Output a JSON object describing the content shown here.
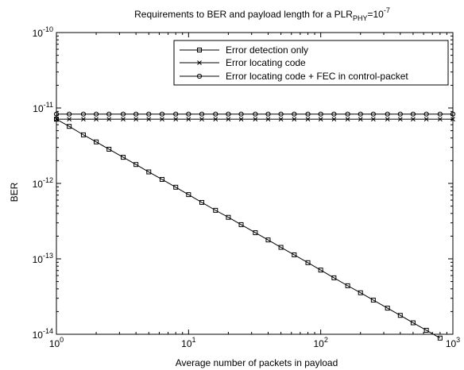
{
  "chart_data": {
    "type": "line",
    "title": {
      "main": "Requirements to BER and payload length for a PLR",
      "subscript": "PHY",
      "suffix": "=10",
      "superscript": "-7"
    },
    "xlabel": "Average number of packets in payload",
    "ylabel": "BER",
    "x_scale": "log",
    "y_scale": "log",
    "xlim": [
      1,
      1000
    ],
    "ylim": [
      1e-14,
      1e-10
    ],
    "x_ticks": [
      {
        "value": 1,
        "base": "10",
        "exp": "0"
      },
      {
        "value": 10,
        "base": "10",
        "exp": "1"
      },
      {
        "value": 100,
        "base": "10",
        "exp": "2"
      },
      {
        "value": 1000,
        "base": "10",
        "exp": "3"
      }
    ],
    "y_ticks": [
      {
        "value": 1e-14,
        "base": "10",
        "exp": "-14"
      },
      {
        "value": 1e-13,
        "base": "10",
        "exp": "-13"
      },
      {
        "value": 1e-12,
        "base": "10",
        "exp": "-12"
      },
      {
        "value": 1e-11,
        "base": "10",
        "exp": "-11"
      },
      {
        "value": 1e-10,
        "base": "10",
        "exp": "-10"
      }
    ],
    "grid": false,
    "legend_position": "top-right",
    "series": [
      {
        "name": "Error detection only",
        "marker": "square",
        "x": [
          1,
          1.25,
          1.6,
          2,
          2.5,
          3.2,
          4,
          5,
          6.3,
          8,
          10,
          12.6,
          16,
          20,
          25,
          32,
          40,
          50,
          63,
          80,
          100,
          126,
          160,
          200,
          250,
          320,
          400,
          500,
          630,
          800
        ],
        "y": [
          7.1e-12,
          5.7e-12,
          4.4e-12,
          3.55e-12,
          2.84e-12,
          2.22e-12,
          1.78e-12,
          1.42e-12,
          1.13e-12,
          8.9e-13,
          7.1e-13,
          5.6e-13,
          4.4e-13,
          3.55e-13,
          2.84e-13,
          2.22e-13,
          1.78e-13,
          1.42e-13,
          1.13e-13,
          8.9e-14,
          7.1e-14,
          5.6e-14,
          4.4e-14,
          3.55e-14,
          2.84e-14,
          2.22e-14,
          1.78e-14,
          1.42e-14,
          1.13e-14,
          8.9e-15
        ]
      },
      {
        "name": "Error locating code",
        "marker": "x",
        "x": [
          1,
          1.25,
          1.6,
          2,
          2.5,
          3.2,
          4,
          5,
          6.3,
          8,
          10,
          12.6,
          16,
          20,
          25,
          32,
          40,
          50,
          63,
          80,
          100,
          126,
          160,
          200,
          250,
          320,
          400,
          500,
          630,
          800,
          1000
        ],
        "y": [
          7.1e-12,
          7.1e-12,
          7.1e-12,
          7.1e-12,
          7.1e-12,
          7.1e-12,
          7.1e-12,
          7.1e-12,
          7.1e-12,
          7.1e-12,
          7.1e-12,
          7.1e-12,
          7.1e-12,
          7.1e-12,
          7.1e-12,
          7.1e-12,
          7.1e-12,
          7.1e-12,
          7.1e-12,
          7.1e-12,
          7.1e-12,
          7.1e-12,
          7.1e-12,
          7.1e-12,
          7.1e-12,
          7.1e-12,
          7.1e-12,
          7.1e-12,
          7.1e-12,
          7.1e-12,
          7.1e-12
        ]
      },
      {
        "name": "Error locating code + FEC in control-packet",
        "marker": "circle",
        "x": [
          1,
          1.25,
          1.6,
          2,
          2.5,
          3.2,
          4,
          5,
          6.3,
          8,
          10,
          12.6,
          16,
          20,
          25,
          32,
          40,
          50,
          63,
          80,
          100,
          126,
          160,
          200,
          250,
          320,
          400,
          500,
          630,
          800,
          1000
        ],
        "y": [
          8.3e-12,
          8.3e-12,
          8.3e-12,
          8.3e-12,
          8.3e-12,
          8.3e-12,
          8.3e-12,
          8.3e-12,
          8.3e-12,
          8.3e-12,
          8.3e-12,
          8.3e-12,
          8.3e-12,
          8.3e-12,
          8.3e-12,
          8.3e-12,
          8.3e-12,
          8.3e-12,
          8.3e-12,
          8.3e-12,
          8.3e-12,
          8.3e-12,
          8.3e-12,
          8.3e-12,
          8.3e-12,
          8.3e-12,
          8.3e-12,
          8.3e-12,
          8.3e-12,
          8.3e-12,
          8.3e-12
        ]
      }
    ]
  }
}
